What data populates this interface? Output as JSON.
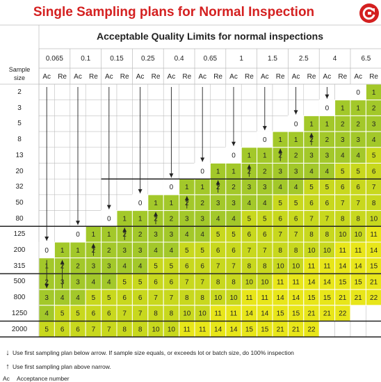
{
  "title": "Single Sampling plans for Normal Inspection",
  "logo_icon": "refresh-circle-icon",
  "heading": "Acceptable Quality Limits for normal inspections",
  "sample_size_heading": [
    "Sample",
    "size"
  ],
  "aql_levels": [
    "0.065",
    "0.1",
    "0.15",
    "0.25",
    "0.4",
    "0.65",
    "1",
    "1.5",
    "2.5",
    "4",
    "6.5"
  ],
  "ac_label": "Ac",
  "re_label": "Re",
  "sample_sizes": [
    "2",
    "3",
    "5",
    "8",
    "13",
    "20",
    "32",
    "50",
    "80",
    "125",
    "200",
    "315",
    "500",
    "800",
    "1250",
    "2000"
  ],
  "colors": {
    "title": "#d42020",
    "light_green": "#a3c82a",
    "yellow_green": "#c8d81e",
    "yellow": "#e8e61a",
    "grid": "#bbbbbb"
  },
  "legend": {
    "down_arrow": "Use first sampling plan below arrow. If sample size equals, or exceeds lot or batch size, do 100% inspection",
    "up_arrow": "Use first sampling plan above narrow.",
    "ac_abbr": "Ac",
    "ac_text": "Acceptance number"
  }
}
